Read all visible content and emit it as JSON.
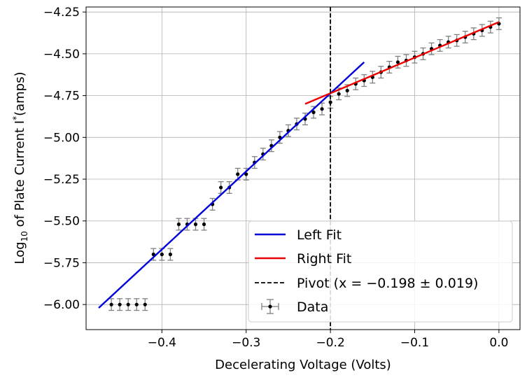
{
  "chart_data": {
    "type": "scatter",
    "xlabel": "Decelerating Voltage (Volts)",
    "ylabel_parts": [
      "Log",
      "10",
      " of Plate Current I",
      "*",
      "(amps)"
    ],
    "xlim": [
      -0.49,
      0.025
    ],
    "ylim": [
      -6.15,
      -4.22
    ],
    "x_ticks": [
      -0.4,
      -0.3,
      -0.2,
      -0.1,
      0.0
    ],
    "x_tick_labels": [
      "−0.4",
      "−0.3",
      "−0.2",
      "−0.1",
      "0.0"
    ],
    "y_ticks": [
      -6.0,
      -5.75,
      -5.5,
      -5.25,
      -5.0,
      -4.75,
      -4.5,
      -4.25
    ],
    "y_tick_labels": [
      "−6.00",
      "−5.75",
      "−5.50",
      "−5.25",
      "−5.00",
      "−4.75",
      "−4.50",
      "−4.25"
    ],
    "grid": true,
    "legend_position": "bottom-right",
    "series": [
      {
        "name": "Data",
        "kind": "errorbar",
        "color": "#000000",
        "ecolor": "#808080",
        "y_err": 0.035,
        "x_err": 0.002,
        "points": [
          [
            -0.46,
            -6.0
          ],
          [
            -0.45,
            -6.0
          ],
          [
            -0.44,
            -6.0
          ],
          [
            -0.43,
            -6.0
          ],
          [
            -0.42,
            -6.0
          ],
          [
            -0.41,
            -5.7
          ],
          [
            -0.4,
            -5.7
          ],
          [
            -0.39,
            -5.7
          ],
          [
            -0.38,
            -5.52
          ],
          [
            -0.37,
            -5.52
          ],
          [
            -0.36,
            -5.52
          ],
          [
            -0.35,
            -5.52
          ],
          [
            -0.34,
            -5.4
          ],
          [
            -0.33,
            -5.3
          ],
          [
            -0.32,
            -5.3
          ],
          [
            -0.31,
            -5.22
          ],
          [
            -0.3,
            -5.22
          ],
          [
            -0.29,
            -5.15
          ],
          [
            -0.28,
            -5.1
          ],
          [
            -0.27,
            -5.05
          ],
          [
            -0.26,
            -5.0
          ],
          [
            -0.25,
            -4.96
          ],
          [
            -0.24,
            -4.92
          ],
          [
            -0.23,
            -4.89
          ],
          [
            -0.22,
            -4.85
          ],
          [
            -0.21,
            -4.83
          ],
          [
            -0.2,
            -4.79
          ],
          [
            -0.19,
            -4.74
          ],
          [
            -0.18,
            -4.72
          ],
          [
            -0.17,
            -4.68
          ],
          [
            -0.16,
            -4.66
          ],
          [
            -0.15,
            -4.64
          ],
          [
            -0.14,
            -4.61
          ],
          [
            -0.13,
            -4.58
          ],
          [
            -0.12,
            -4.55
          ],
          [
            -0.11,
            -4.54
          ],
          [
            -0.1,
            -4.52
          ],
          [
            -0.09,
            -4.5
          ],
          [
            -0.08,
            -4.47
          ],
          [
            -0.07,
            -4.45
          ],
          [
            -0.06,
            -4.43
          ],
          [
            -0.05,
            -4.42
          ],
          [
            -0.04,
            -4.4
          ],
          [
            -0.03,
            -4.38
          ],
          [
            -0.02,
            -4.36
          ],
          [
            -0.01,
            -4.34
          ],
          [
            0.0,
            -4.32
          ]
        ]
      },
      {
        "name": "Left Fit",
        "kind": "line",
        "color": "#0000dd",
        "points": [
          [
            -0.475,
            -6.02
          ],
          [
            -0.16,
            -4.55
          ]
        ]
      },
      {
        "name": "Right Fit",
        "kind": "line",
        "color": "#ee0000",
        "points": [
          [
            -0.23,
            -4.8
          ],
          [
            0.0,
            -4.31
          ]
        ]
      },
      {
        "name": "Pivot (x = −0.198 ± 0.019)",
        "kind": "vline",
        "color": "#000000",
        "x": -0.2
      }
    ],
    "legend_order": [
      "Left Fit",
      "Right Fit",
      "Pivot (x = −0.198 ± 0.019)",
      "Data"
    ]
  }
}
